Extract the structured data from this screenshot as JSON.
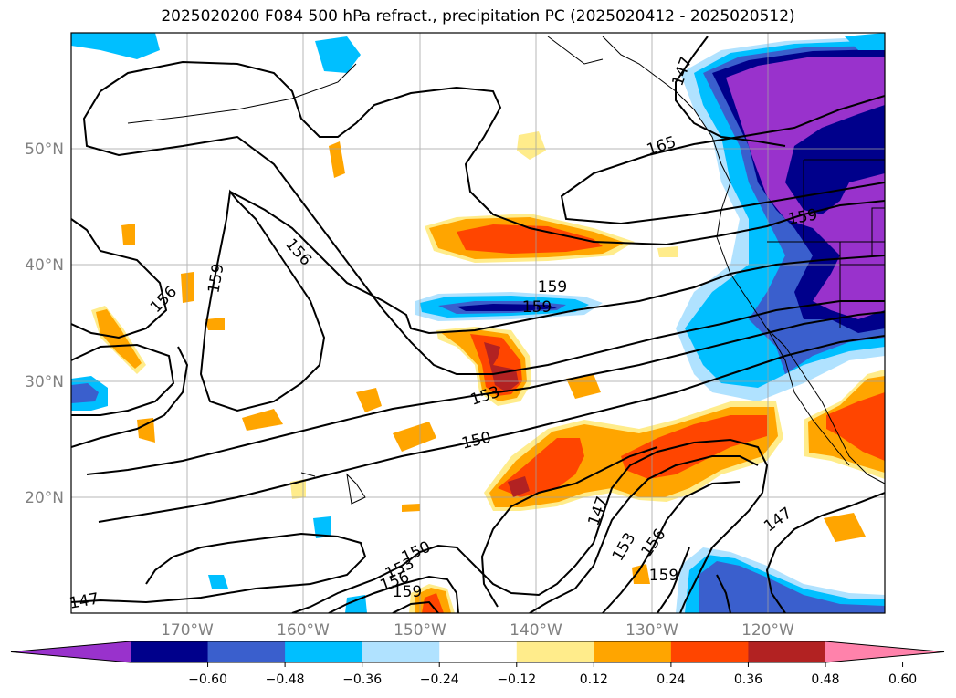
{
  "title": "2025020200 F084 500 hPa refract., precipitation PC (2025020412 - 2025020512)",
  "map": {
    "lat_labels": [
      "50°N",
      "40°N",
      "30°N",
      "20°N"
    ],
    "lon_labels": [
      "170°W",
      "160°W",
      "150°W",
      "140°W",
      "130°W",
      "120°W"
    ],
    "contour_labels": [
      "165",
      "159",
      "156",
      "159",
      "156",
      "159",
      "153",
      "150",
      "150",
      "153",
      "156",
      "159",
      "147",
      "147",
      "153",
      "156",
      "159",
      "147",
      "147",
      "159"
    ]
  },
  "colorbar": {
    "ticks": [
      "−0.60",
      "−0.48",
      "−0.36",
      "−0.24",
      "−0.12",
      "0.12",
      "0.24",
      "0.36",
      "0.48",
      "0.60"
    ],
    "colors": [
      "#9932cc",
      "#00008b",
      "#3a5fcd",
      "#00bfff",
      "#b0e2ff",
      "#ffffff",
      "#ffec8b",
      "#ffa500",
      "#ff4500",
      "#b22222",
      "#ff82ab"
    ]
  },
  "fill_colors": {
    "purple": "#9932cc",
    "navy": "#00008b",
    "blue": "#3a5fcd",
    "cyan": "#00bfff",
    "lightblue": "#b0e2ff",
    "yellow": "#ffec8b",
    "orange": "#ffa500",
    "redorange": "#ff4500",
    "firebrick": "#b22222"
  }
}
